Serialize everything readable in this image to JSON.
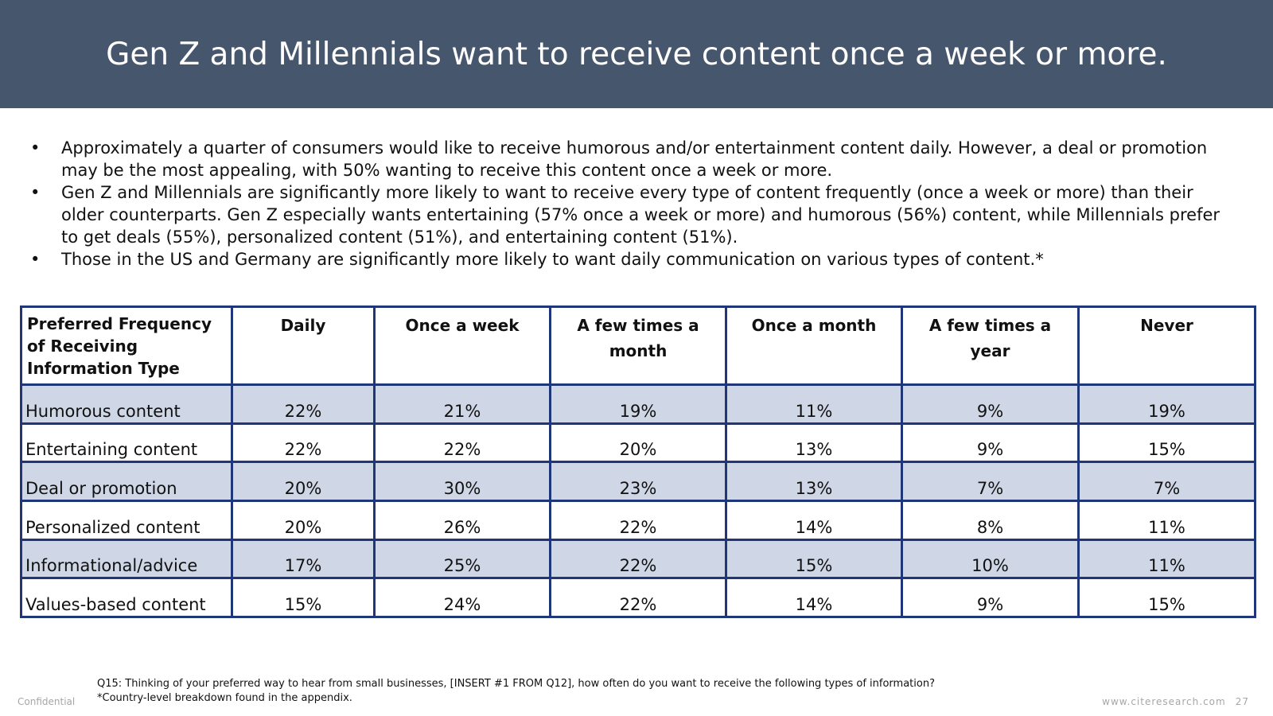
{
  "header": {
    "title": "Gen Z and Millennials want to receive content once a week or more."
  },
  "bullets": [
    "Approximately a quarter of consumers would like to receive humorous and/or entertainment content daily.  However, a deal or promotion may be the most appealing, with 50% wanting to receive this content once a week or more.",
    "Gen Z and Millennials are significantly more likely to want to receive every type of content frequently (once a week or more) than their older counterparts.  Gen Z especially wants entertaining (57% once a week or more) and humorous (56%) content, while Millennials prefer to get deals (55%), personalized content (51%), and entertaining content (51%).",
    "Those in the US and Germany are significantly more likely to want daily communication on various types of content.*"
  ],
  "bullet_glyph": "•",
  "table": {
    "headers": [
      "Preferred Frequency of Receiving Information Type",
      "Daily",
      "Once a week",
      "A few times a month",
      "Once a month",
      "A few times a year",
      "Never"
    ],
    "rows": [
      {
        "label": "Humorous content",
        "values": [
          "22%",
          "21%",
          "19%",
          "11%",
          "9%",
          "19%"
        ]
      },
      {
        "label": "Entertaining content",
        "values": [
          "22%",
          "22%",
          "20%",
          "13%",
          "9%",
          "15%"
        ]
      },
      {
        "label": "Deal or promotion",
        "values": [
          "20%",
          "30%",
          "23%",
          "13%",
          "7%",
          "7%"
        ]
      },
      {
        "label": "Personalized content",
        "values": [
          "20%",
          "26%",
          "22%",
          "14%",
          "8%",
          "11%"
        ]
      },
      {
        "label": "Informational/advice",
        "values": [
          "17%",
          "25%",
          "22%",
          "15%",
          "10%",
          "11%"
        ]
      },
      {
        "label": "Values-based content",
        "values": [
          "15%",
          "24%",
          "22%",
          "14%",
          "9%",
          "15%"
        ]
      }
    ]
  },
  "footnote": {
    "question": "Q15: Thinking of your preferred way to hear from small businesses, [INSERT #1 FROM Q12], how often do you want to receive the following types of information?",
    "note": "*Country-level breakdown found in the appendix."
  },
  "footer": {
    "confidential": "Confidential",
    "site": "www.citeresearch.com",
    "page": "27"
  },
  "colors": {
    "header_bg": "#46566d",
    "table_border": "#1f3779",
    "row_shade": "#cfd6e5"
  }
}
